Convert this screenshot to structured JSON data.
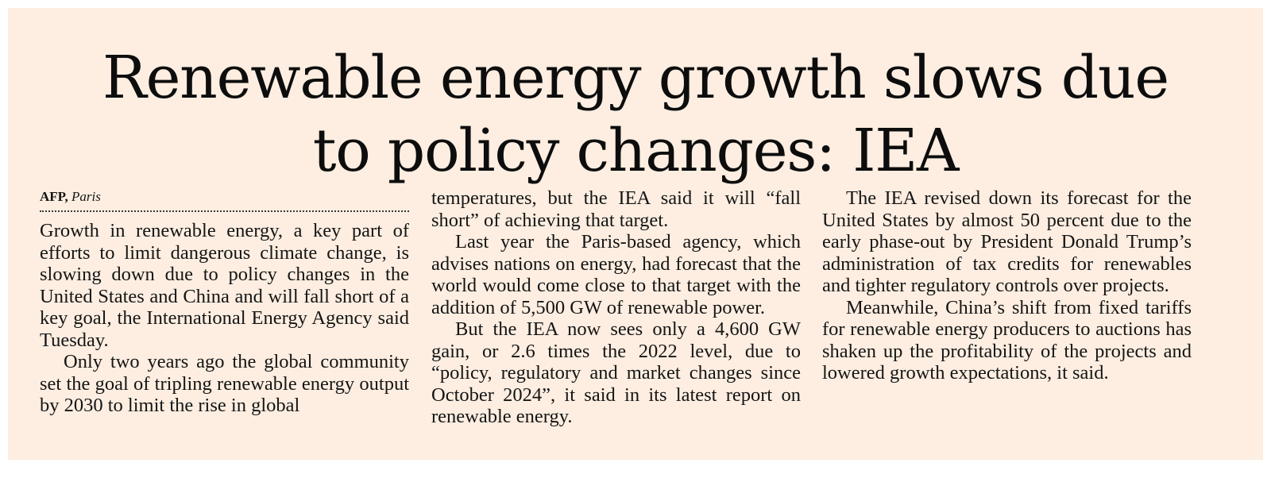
{
  "article": {
    "headline_lines": [
      "Renewable energy growth slows due",
      "to policy changes: IEA"
    ],
    "byline": {
      "agency": "AFP,",
      "place": "Paris"
    },
    "columns": [
      {
        "paragraphs": [
          {
            "indent": false,
            "text": "Growth in renewable energy, a key part of efforts to limit dangerous climate change, is slowing down due to policy changes in the United States and China and will fall short of a key goal, the International Energy Agency said Tuesday."
          },
          {
            "indent": true,
            "text": "Only two years ago the global community set the goal of tripling renewable energy output by 2030 to limit the rise in global"
          }
        ]
      },
      {
        "paragraphs": [
          {
            "indent": false,
            "text": "temperatures, but the IEA said it will “fall short” of achieving that target."
          },
          {
            "indent": true,
            "text": "Last year the Paris-based agency, which advises nations on energy, had forecast that the world would come close to that target with the addition of 5,500 GW of renewable power."
          },
          {
            "indent": true,
            "text": "But the IEA now sees only a 4,600 GW gain, or 2.6 times the 2022 level, due to “policy, regulatory and market changes since October 2024”, it said in its latest report on renewable energy."
          }
        ]
      },
      {
        "paragraphs": [
          {
            "indent": true,
            "text": "The IEA revised down its forecast for the United States by almost 50 percent due to the early phase-out by President Donald Trump’s administration of tax credits for renewables and tighter regulatory controls over projects."
          },
          {
            "indent": true,
            "text": "Meanwhile, China’s shift from fixed tariffs for renewable energy producers to auctions has shaken up the profitability of the projects and lowered growth expectations, it said."
          }
        ]
      }
    ]
  },
  "colors": {
    "panel_background": "#fdeee1",
    "page_background": "#ffffff",
    "text": "#151515"
  }
}
